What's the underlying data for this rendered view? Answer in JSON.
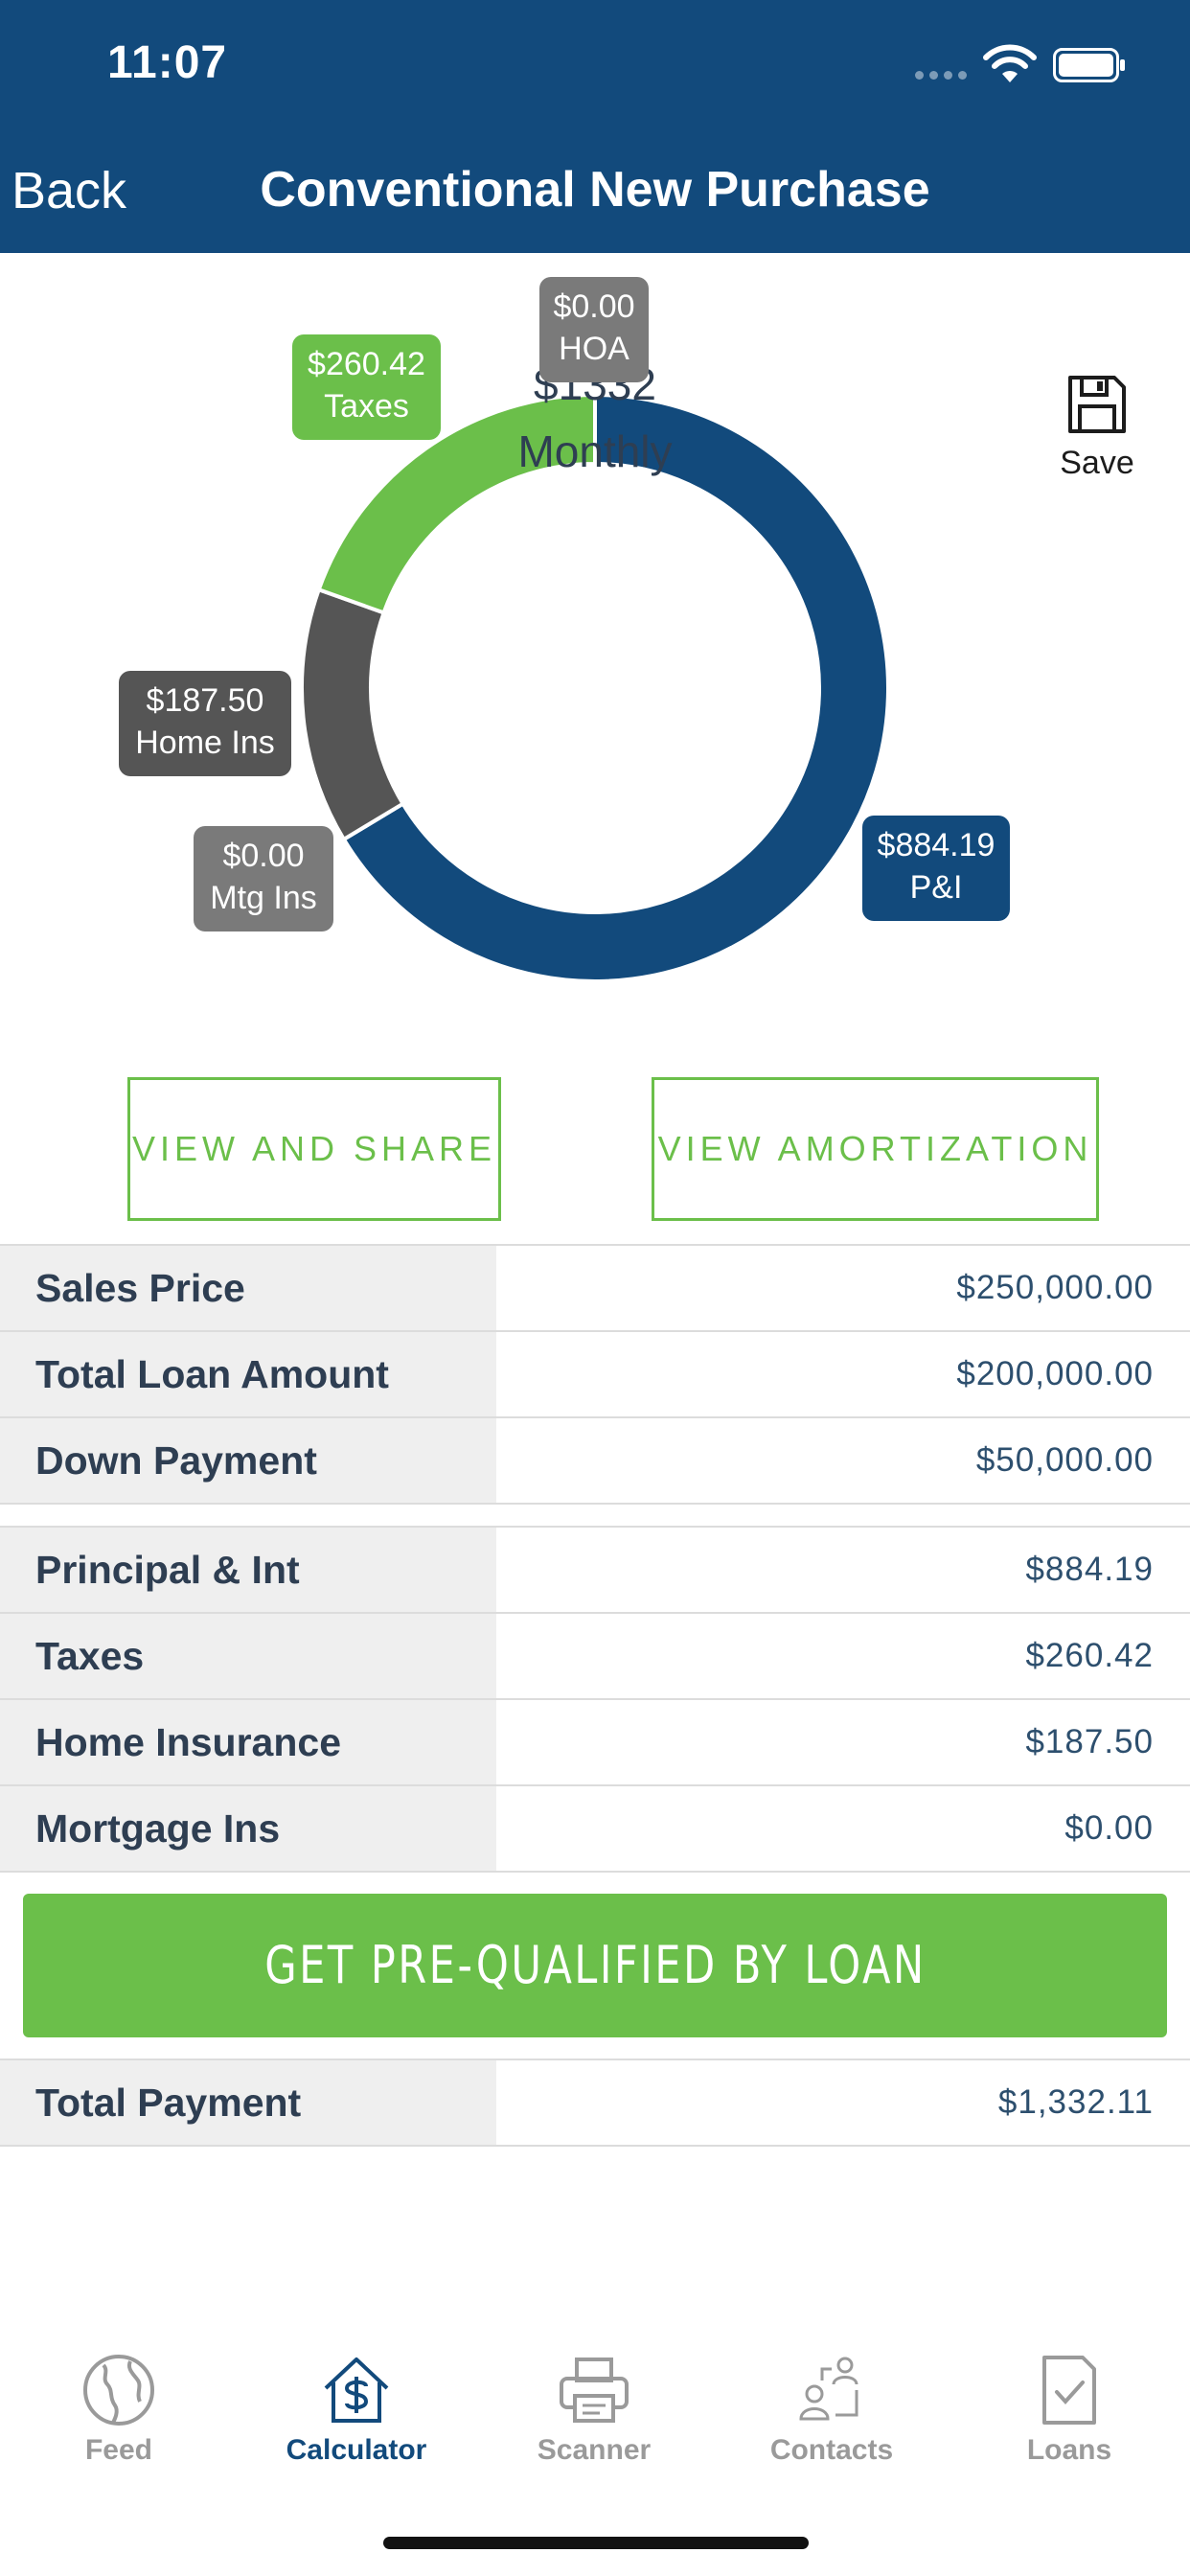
{
  "status_bar": {
    "time": "11:07"
  },
  "nav": {
    "back_label": "Back",
    "title": "Conventional New Purchase"
  },
  "chart_data": {
    "type": "pie",
    "style": "donut",
    "center_amount": "$1332",
    "center_label": "Monthly",
    "slices": [
      {
        "label": "P&I",
        "value": 884.19,
        "display": "$884.19",
        "color": "#124a7c"
      },
      {
        "label": "Mtg Ins",
        "value": 0.0,
        "display": "$0.00",
        "color": "#7a7a7a"
      },
      {
        "label": "Home Ins",
        "value": 187.5,
        "display": "$187.50",
        "color": "#555555"
      },
      {
        "label": "Taxes",
        "value": 260.42,
        "display": "$260.42",
        "color": "#6bbf4a"
      },
      {
        "label": "HOA",
        "value": 0.0,
        "display": "$0.00",
        "color": "#7a7a7a"
      }
    ]
  },
  "save_label": "Save",
  "buttons": {
    "view_share": "VIEW AND SHARE",
    "view_amortization": "VIEW AMORTIZATION"
  },
  "loan_summary": [
    {
      "label": "Sales Price",
      "value": "$250,000.00"
    },
    {
      "label": "Total Loan Amount",
      "value": "$200,000.00"
    },
    {
      "label": "Down Payment",
      "value": "$50,000.00"
    }
  ],
  "payment_breakdown": [
    {
      "label": "Principal & Int",
      "value": "$884.19"
    },
    {
      "label": "Taxes",
      "value": "$260.42"
    },
    {
      "label": "Home Insurance",
      "value": "$187.50"
    },
    {
      "label": "Mortgage Ins",
      "value": "$0.00"
    }
  ],
  "cta_label": "GET PRE-QUALIFIED BY LOAN",
  "total": {
    "label": "Total Payment",
    "value": "$1,332.11"
  },
  "tabs": [
    {
      "label": "Feed",
      "icon": "globe-icon",
      "active": false
    },
    {
      "label": "Calculator",
      "icon": "house-dollar-icon",
      "active": true
    },
    {
      "label": "Scanner",
      "icon": "printer-icon",
      "active": false
    },
    {
      "label": "Contacts",
      "icon": "contacts-icon",
      "active": false
    },
    {
      "label": "Loans",
      "icon": "document-check-icon",
      "active": false
    }
  ],
  "colors": {
    "brand_blue": "#124a7c",
    "accent_green": "#6bbf4a",
    "text_dark": "#2e3e52"
  }
}
